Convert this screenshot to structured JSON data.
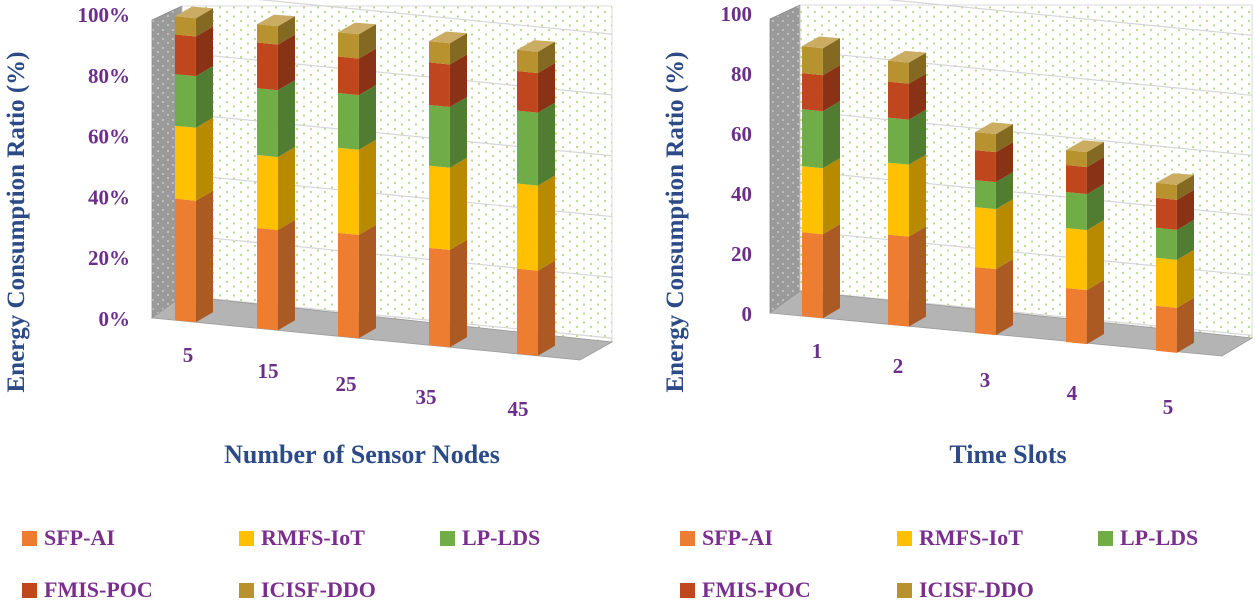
{
  "chart_data": [
    {
      "type": "bar",
      "stacked": true,
      "style": "3d",
      "title": "",
      "xlabel": "Number of Sensor Nodes",
      "ylabel": "Energy Consumption Ratio (%)",
      "ylim": [
        0,
        100
      ],
      "yticks": [
        "0%",
        "20%",
        "40%",
        "60%",
        "80%",
        "100%"
      ],
      "grid": true,
      "legend": "bottom",
      "categories": [
        "5",
        "15",
        "25",
        "35",
        "45"
      ],
      "series": [
        {
          "name": "SFP-AI",
          "values": [
            40,
            33,
            34,
            32,
            28
          ]
        },
        {
          "name": "RMFS-IoT",
          "values": [
            24,
            24,
            28,
            27,
            28
          ]
        },
        {
          "name": "LP-LDS",
          "values": [
            17,
            22,
            18,
            20,
            24
          ]
        },
        {
          "name": "FMIS-POC",
          "values": [
            13,
            15,
            12,
            14,
            13
          ]
        },
        {
          "name": "ICISF-DDO",
          "values": [
            6,
            6,
            8,
            7,
            7
          ]
        }
      ]
    },
    {
      "type": "bar",
      "stacked": true,
      "style": "3d",
      "title": "",
      "xlabel": "Time Slots",
      "ylabel": "Energy Consumption Ratio (%)",
      "ylim": [
        0,
        100
      ],
      "yticks": [
        "0",
        "20",
        "40",
        "60",
        "80",
        "100"
      ],
      "grid": true,
      "legend": "bottom",
      "categories": [
        "1",
        "2",
        "3",
        "4",
        "5"
      ],
      "series": [
        {
          "name": "SFP-AI",
          "values": [
            28,
            30,
            22,
            18,
            15
          ]
        },
        {
          "name": "RMFS-IoT",
          "values": [
            22,
            24,
            20,
            20,
            16
          ]
        },
        {
          "name": "LP-LDS",
          "values": [
            19,
            15,
            9,
            12,
            10
          ]
        },
        {
          "name": "FMIS-POC",
          "values": [
            12,
            12,
            10,
            9,
            10
          ]
        },
        {
          "name": "ICISF-DDO",
          "values": [
            9,
            7,
            6,
            5,
            5
          ]
        }
      ]
    }
  ],
  "colors": {
    "SFP-AI": "#ed7d31",
    "RMFS-IoT": "#ffc000",
    "LP-LDS": "#70ad47",
    "FMIS-POC": "#c0461e",
    "ICISF-DDO": "#b8922f"
  }
}
